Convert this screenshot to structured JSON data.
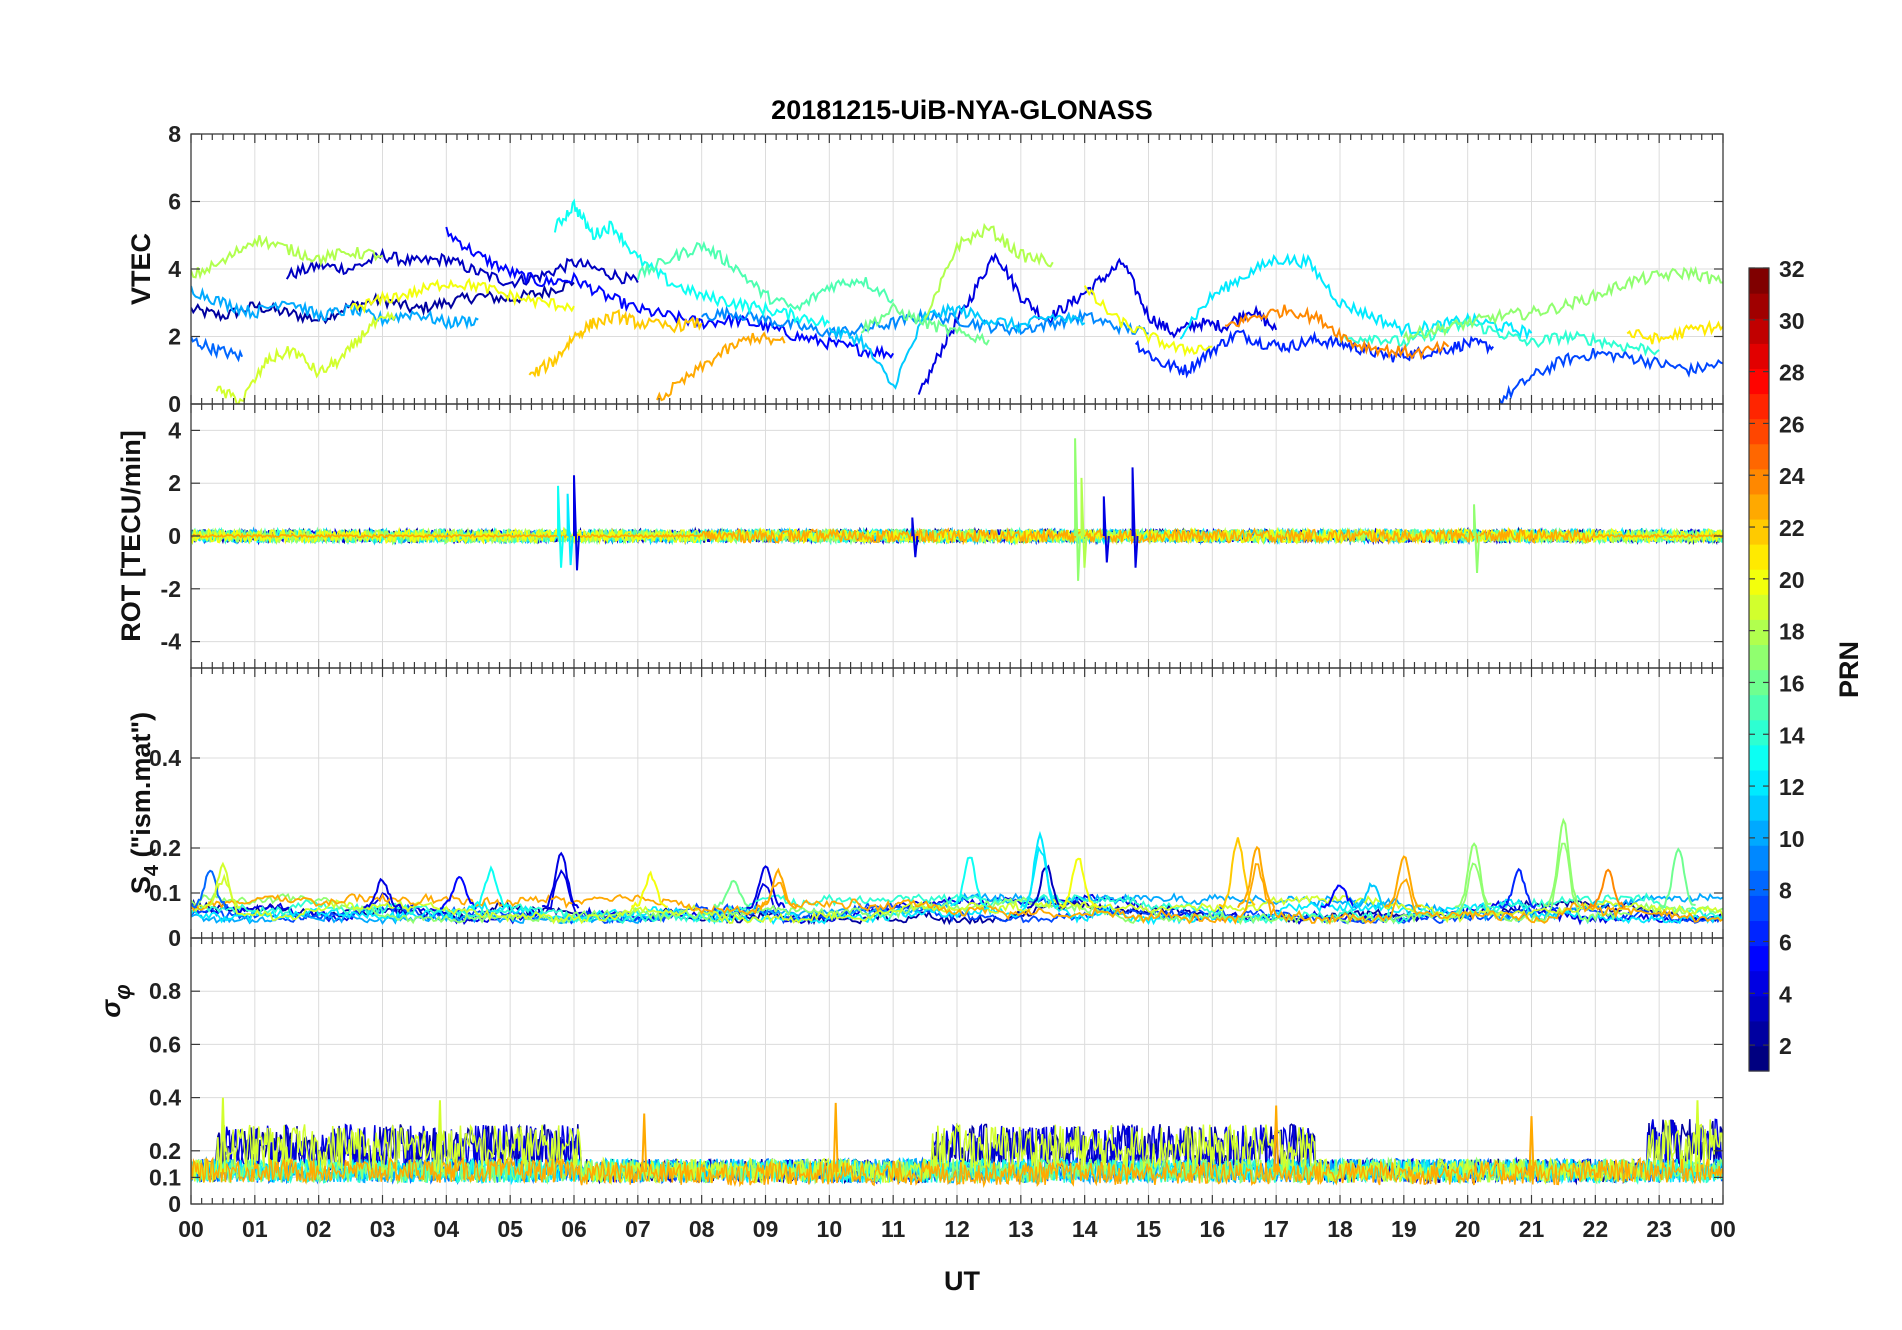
{
  "chart_data": {
    "type": "line",
    "title": "20181215-UiB-NYA-GLONASS",
    "xlabel": "UT",
    "x_tick_labels": [
      "00",
      "01",
      "02",
      "03",
      "04",
      "05",
      "06",
      "07",
      "08",
      "09",
      "10",
      "11",
      "12",
      "13",
      "14",
      "15",
      "16",
      "17",
      "18",
      "19",
      "20",
      "21",
      "22",
      "23",
      "00"
    ],
    "xlim": [
      0,
      24
    ],
    "panels": [
      {
        "id": "vtec",
        "ylabel": "VTEC",
        "ylim": [
          0,
          8
        ],
        "yticks": [
          0,
          2,
          4,
          6,
          8
        ],
        "ytick_labels": [
          "0",
          "2",
          "4",
          "6",
          "8"
        ],
        "series": [
          {
            "prn": 2,
            "x": [
              0,
              0.5,
              1,
              1.5,
              2,
              2.5,
              3,
              3.5,
              4,
              4.5,
              5,
              5.5,
              6
            ],
            "y": [
              2.8,
              2.6,
              2.9,
              2.7,
              2.5,
              2.9,
              3.1,
              2.8,
              3.0,
              3.2,
              3.1,
              3.3,
              3.6
            ]
          },
          {
            "prn": 3,
            "x": [
              1.5,
              2,
              2.5,
              3,
              3.5,
              4,
              4.5,
              5,
              5.5,
              6,
              6.5,
              7
            ],
            "y": [
              3.8,
              4.1,
              4.0,
              4.4,
              4.2,
              4.3,
              3.9,
              3.6,
              3.8,
              4.2,
              3.9,
              3.6
            ]
          },
          {
            "prn": 4,
            "x": [
              11.4,
              11.8,
              12.2,
              12.6,
              13,
              13.4,
              13.8,
              14.2,
              14.6,
              15,
              15.4,
              15.8,
              16.2,
              16.6,
              17
            ],
            "y": [
              0.2,
              1.8,
              3.1,
              4.5,
              3.2,
              2.5,
              3.0,
              3.6,
              4.2,
              2.6,
              2.1,
              2.4,
              2.3,
              2.8,
              2.2
            ]
          },
          {
            "prn": 5,
            "x": [
              4,
              4.5,
              5,
              5.5,
              6,
              6.5,
              7,
              7.5,
              8,
              8.5,
              9,
              9.5,
              10,
              10.5,
              11
            ],
            "y": [
              5.1,
              4.4,
              3.9,
              3.6,
              3.7,
              3.2,
              2.8,
              2.6,
              2.4,
              2.5,
              2.3,
              2.0,
              1.8,
              1.6,
              1.5
            ]
          },
          {
            "prn": 6,
            "x": [
              14.8,
              15.2,
              15.6,
              16,
              16.4,
              16.8,
              17.2,
              17.6,
              18,
              18.4,
              18.8,
              19.2,
              19.6,
              20,
              20.4
            ],
            "y": [
              1.8,
              1.2,
              1.0,
              1.6,
              2.1,
              1.8,
              1.7,
              1.9,
              1.8,
              1.6,
              1.4,
              1.5,
              1.6,
              1.8,
              1.7
            ]
          },
          {
            "prn": 7,
            "x": [
              20.5,
              21,
              21.5,
              22,
              22.5,
              23,
              23.5,
              24
            ],
            "y": [
              0.1,
              0.8,
              1.3,
              1.5,
              1.4,
              1.2,
              1.0,
              1.2
            ]
          },
          {
            "prn": 8,
            "x": [
              0,
              0.4,
              0.8
            ],
            "y": [
              1.9,
              1.6,
              1.4
            ]
          },
          {
            "prn": 9,
            "x": [
              8,
              8.5,
              9,
              9.5,
              10,
              10.5,
              11,
              11.5,
              12,
              12.5,
              13,
              13.5,
              14,
              14.5,
              15
            ],
            "y": [
              2.6,
              2.7,
              2.5,
              2.3,
              2.1,
              2.2,
              2.4,
              2.6,
              2.5,
              2.3,
              2.2,
              2.4,
              2.6,
              2.3,
              2.1
            ]
          },
          {
            "prn": 10,
            "x": [
              0,
              0.5,
              1,
              1.5,
              2,
              2.5,
              3,
              3.5,
              4,
              4.5
            ],
            "y": [
              3.4,
              3.0,
              2.7,
              3.1,
              2.6,
              2.8,
              2.5,
              2.7,
              2.4,
              2.5
            ]
          },
          {
            "prn": 11,
            "x": [
              10,
              10.5,
              11,
              11.5,
              12,
              12.5,
              13,
              13.5,
              14
            ],
            "y": [
              2.2,
              1.9,
              0.5,
              2.6,
              2.8,
              2.5,
              2.3,
              2.6,
              2.4
            ]
          },
          {
            "prn": 12,
            "x": [
              15.5,
              16,
              16.5,
              17,
              17.5,
              18,
              18.5,
              19,
              19.5,
              20,
              20.5,
              21
            ],
            "y": [
              2.1,
              3.2,
              3.8,
              4.3,
              4.2,
              3.0,
              2.6,
              2.2,
              2.3,
              2.5,
              2.3,
              2.1
            ]
          },
          {
            "prn": 13,
            "x": [
              5.7,
              6,
              6.3,
              6.6,
              7,
              7.5,
              8,
              8.5,
              9,
              9.5,
              10
            ],
            "y": [
              5.2,
              5.9,
              5.0,
              5.3,
              4.3,
              3.6,
              3.2,
              3.0,
              2.8,
              2.6,
              2.4
            ]
          },
          {
            "prn": 14,
            "x": [
              18,
              18.5,
              19,
              19.5,
              20,
              20.5,
              21,
              21.5,
              22,
              22.5,
              23
            ],
            "y": [
              1.9,
              2.0,
              1.8,
              2.1,
              2.4,
              2.1,
              1.8,
              2.0,
              1.9,
              1.7,
              1.6
            ]
          },
          {
            "prn": 15,
            "x": [
              7,
              7.5,
              8,
              8.5,
              9,
              9.5,
              10,
              10.5,
              11
            ],
            "y": [
              3.8,
              4.3,
              4.7,
              4.1,
              3.2,
              2.8,
              3.5,
              3.7,
              3.1
            ]
          },
          {
            "prn": 16,
            "x": [
              10.5,
              11,
              11.5,
              12,
              12.5
            ],
            "y": [
              2.2,
              2.8,
              2.4,
              2.1,
              1.9
            ]
          },
          {
            "prn": 17,
            "x": [
              19,
              19.5,
              20,
              20.5,
              21,
              21.5,
              22,
              22.5,
              23,
              23.5,
              24
            ],
            "y": [
              2.0,
              2.2,
              2.4,
              2.6,
              2.7,
              2.9,
              3.2,
              3.6,
              3.8,
              3.9,
              3.6
            ]
          },
          {
            "prn": 18,
            "x": [
              0,
              0.5,
              1,
              1.5,
              2,
              2.5,
              3
            ],
            "y": [
              3.8,
              4.2,
              4.9,
              4.6,
              4.3,
              4.5,
              4.4
            ]
          },
          {
            "prn": 18,
            "x": [
              11.5,
              12,
              12.5,
              13,
              13.5
            ],
            "y": [
              2.4,
              4.7,
              5.2,
              4.4,
              4.2
            ]
          },
          {
            "prn": 19,
            "x": [
              0.4,
              0.8,
              1.2,
              1.6,
              2,
              2.4,
              2.8,
              3.2
            ],
            "y": [
              0.4,
              0.1,
              1.3,
              1.6,
              0.9,
              1.4,
              2.3,
              2.6
            ]
          },
          {
            "prn": 20,
            "x": [
              2.5,
              3,
              3.5,
              4,
              4.5,
              5,
              5.5,
              6
            ],
            "y": [
              2.8,
              3.1,
              3.3,
              3.6,
              3.5,
              3.2,
              3.0,
              2.9
            ]
          },
          {
            "prn": 20,
            "x": [
              14,
              14.5,
              15,
              15.5,
              16
            ],
            "y": [
              3.4,
              2.5,
              2.0,
              1.6,
              1.7
            ]
          },
          {
            "prn": 21,
            "x": [
              22.5,
              23,
              23.5,
              24
            ],
            "y": [
              2.1,
              1.9,
              2.2,
              2.3
            ]
          },
          {
            "prn": 22,
            "x": [
              5.3,
              5.7,
              6,
              6.3,
              6.7,
              7,
              7.5,
              8
            ],
            "y": [
              0.8,
              1.3,
              2.0,
              2.4,
              2.6,
              2.4,
              2.3,
              2.4
            ]
          },
          {
            "prn": 23,
            "x": [
              7.3,
              7.8,
              8.3,
              8.8,
              9.3
            ],
            "y": [
              0.1,
              0.8,
              1.5,
              2.0,
              1.8
            ]
          },
          {
            "prn": 24,
            "x": [
              16.2,
              16.7,
              17.2,
              17.7,
              18.2,
              18.7,
              19.2,
              19.7
            ],
            "y": [
              2.3,
              2.6,
              2.8,
              2.5,
              1.8,
              1.6,
              1.5,
              1.7
            ]
          }
        ]
      },
      {
        "id": "rot",
        "ylabel": "ROT [TECU/min]",
        "ylim": [
          -5,
          5
        ],
        "yticks": [
          -4,
          -2,
          0,
          2,
          4
        ],
        "ytick_labels": [
          "-4",
          "-2",
          "0",
          "2",
          "4"
        ],
        "spikes": [
          {
            "prn": 13,
            "x": 5.75,
            "y": [
              -1.2,
              1.9
            ]
          },
          {
            "prn": 12,
            "x": 5.9,
            "y": [
              -1.1,
              1.6
            ]
          },
          {
            "prn": 4,
            "x": 6.0,
            "y": [
              -1.3,
              2.3
            ]
          },
          {
            "prn": 4,
            "x": 11.3,
            "y": [
              -0.8,
              0.7
            ]
          },
          {
            "prn": 17,
            "x": 13.85,
            "y": [
              -1.7,
              3.7
            ]
          },
          {
            "prn": 18,
            "x": 13.95,
            "y": [
              -1.2,
              2.2
            ]
          },
          {
            "prn": 4,
            "x": 14.3,
            "y": [
              -1.0,
              1.5
            ]
          },
          {
            "prn": 4,
            "x": 14.75,
            "y": [
              -1.2,
              2.6
            ]
          },
          {
            "prn": 17,
            "x": 20.1,
            "y": [
              -1.4,
              1.2
            ]
          }
        ],
        "noise_level": 0.25
      },
      {
        "id": "s4",
        "ylabel": "S4 (\"ism.mat\")",
        "ylim": [
          0,
          0.6
        ],
        "yticks": [
          0,
          0.1,
          0.2,
          0.4
        ],
        "ytick_labels": [
          "0",
          "0.1",
          "0.2",
          "0.4"
        ],
        "peaks": [
          {
            "prn": 8,
            "x": 0.3,
            "y": 0.15
          },
          {
            "prn": 19,
            "x": 0.5,
            "y": 0.16
          },
          {
            "prn": 4,
            "x": 3.0,
            "y": 0.13
          },
          {
            "prn": 5,
            "x": 4.2,
            "y": 0.14
          },
          {
            "prn": 13,
            "x": 4.7,
            "y": 0.15
          },
          {
            "prn": 4,
            "x": 5.8,
            "y": 0.19
          },
          {
            "prn": 20,
            "x": 7.2,
            "y": 0.14
          },
          {
            "prn": 16,
            "x": 8.5,
            "y": 0.13
          },
          {
            "prn": 4,
            "x": 9.0,
            "y": 0.16
          },
          {
            "prn": 23,
            "x": 9.2,
            "y": 0.15
          },
          {
            "prn": 13,
            "x": 12.2,
            "y": 0.18
          },
          {
            "prn": 3,
            "x": 13.4,
            "y": 0.16
          },
          {
            "prn": 12,
            "x": 13.3,
            "y": 0.23
          },
          {
            "prn": 20,
            "x": 13.9,
            "y": 0.18
          },
          {
            "prn": 22,
            "x": 16.4,
            "y": 0.22
          },
          {
            "prn": 23,
            "x": 16.7,
            "y": 0.2
          },
          {
            "prn": 5,
            "x": 18.0,
            "y": 0.12
          },
          {
            "prn": 11,
            "x": 18.5,
            "y": 0.12
          },
          {
            "prn": 23,
            "x": 19.0,
            "y": 0.18
          },
          {
            "prn": 17,
            "x": 20.1,
            "y": 0.21
          },
          {
            "prn": 6,
            "x": 20.8,
            "y": 0.15
          },
          {
            "prn": 17,
            "x": 21.5,
            "y": 0.26
          },
          {
            "prn": 24,
            "x": 22.2,
            "y": 0.15
          },
          {
            "prn": 16,
            "x": 23.3,
            "y": 0.2
          }
        ],
        "baseline": [
          0.04,
          0.09
        ]
      },
      {
        "id": "sigma_phi",
        "ylabel": "σ φ",
        "ylim": [
          0,
          1
        ],
        "yticks": [
          0,
          0.1,
          0.2,
          0.4,
          0.6,
          0.8
        ],
        "ytick_labels": [
          "0",
          "0.1",
          "0.2",
          "0.4",
          "0.6",
          "0.8"
        ],
        "spikes": [
          {
            "prn": 19,
            "x": 0.5,
            "y": 0.4
          },
          {
            "prn": 19,
            "x": 3.9,
            "y": 0.39
          },
          {
            "prn": 23,
            "x": 7.1,
            "y": 0.34
          },
          {
            "prn": 23,
            "x": 10.1,
            "y": 0.38
          },
          {
            "prn": 23,
            "x": 17.0,
            "y": 0.37
          },
          {
            "prn": 23,
            "x": 21.0,
            "y": 0.33
          },
          {
            "prn": 19,
            "x": 23.6,
            "y": 0.39
          }
        ],
        "active_bands": [
          {
            "x": [
              0.4,
              6.1
            ],
            "y": [
              0.12,
              0.3
            ]
          },
          {
            "x": [
              11.6,
              17.6
            ],
            "y": [
              0.12,
              0.3
            ]
          },
          {
            "x": [
              22.8,
              24
            ],
            "y": [
              0.13,
              0.32
            ]
          }
        ],
        "baseline": [
          0.08,
          0.17
        ]
      }
    ],
    "colorbar": {
      "label": "PRN",
      "min": 1,
      "max": 32,
      "ticks": [
        2,
        4,
        6,
        8,
        10,
        12,
        14,
        16,
        18,
        20,
        22,
        24,
        26,
        28,
        30,
        32
      ],
      "colormap": "jet"
    }
  }
}
